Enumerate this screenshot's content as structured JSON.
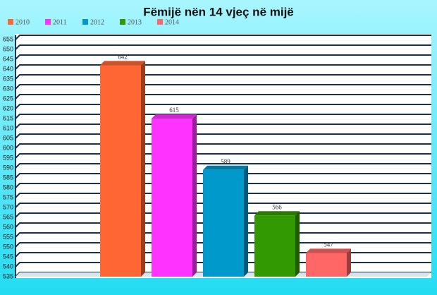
{
  "chart_data": {
    "type": "bar",
    "title": "Fëmijë nën 14 vjeç në mijë",
    "series": [
      {
        "name": "2010",
        "color": "#ff6633",
        "values": [
          642
        ]
      },
      {
        "name": "2011",
        "color": "#ff33ff",
        "values": [
          615
        ]
      },
      {
        "name": "2012",
        "color": "#0099cc",
        "values": [
          589
        ]
      },
      {
        "name": "2013",
        "color": "#339900",
        "values": [
          566
        ]
      },
      {
        "name": "2014",
        "color": "#ff6666",
        "values": [
          547
        ]
      }
    ],
    "ylim": [
      535,
      655
    ],
    "yticks": [
      535,
      540,
      545,
      550,
      555,
      560,
      565,
      570,
      575,
      580,
      585,
      590,
      595,
      600,
      605,
      610,
      615,
      620,
      625,
      630,
      635,
      640,
      645,
      650,
      655
    ],
    "grid": true,
    "legend": "top-left"
  }
}
